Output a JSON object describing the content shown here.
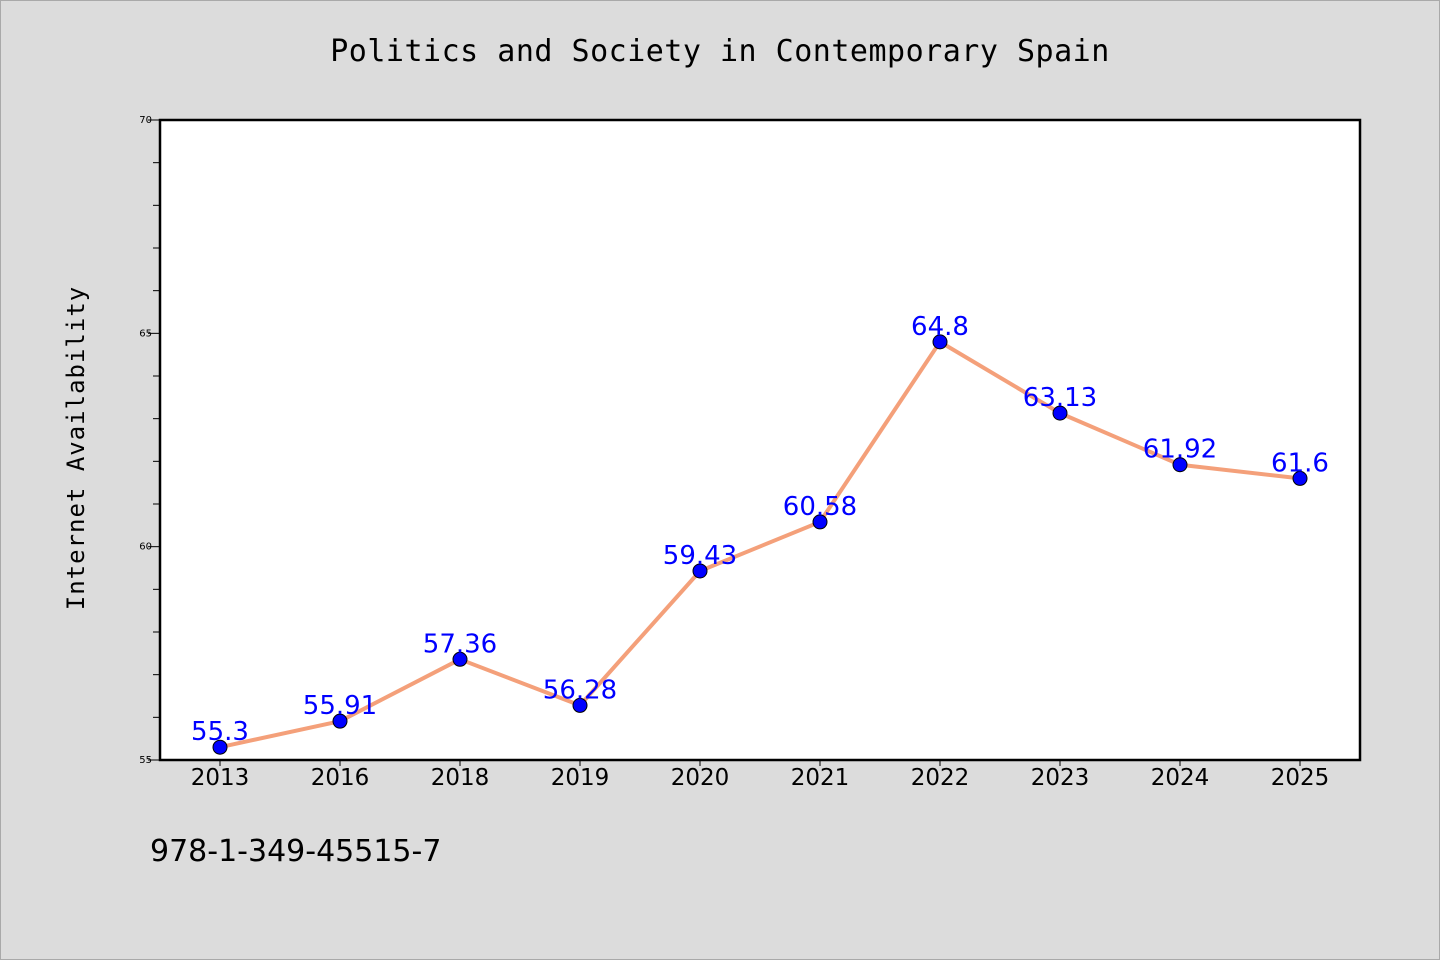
{
  "chart_data": {
    "type": "line",
    "title": "Politics and Society in Contemporary Spain",
    "xlabel": "",
    "ylabel": "Internet Availability",
    "categories": [
      "2013",
      "2016",
      "2018",
      "2019",
      "2020",
      "2021",
      "2022",
      "2023",
      "2024",
      "2025"
    ],
    "series": [
      {
        "values": [
          55.3,
          55.91,
          57.36,
          56.28,
          59.43,
          60.58,
          64.8,
          63.13,
          61.92,
          61.6
        ],
        "labels": [
          "55.3",
          "55.91",
          "57.36",
          "56.28",
          "59.43",
          "60.58",
          "64.8",
          "63.13",
          "61.92",
          "61.6"
        ],
        "line_color": "#f4a07a",
        "marker_color": "#0000ff",
        "label_color": "#0000ff"
      }
    ],
    "ylim": [
      55,
      70
    ],
    "yticks": [
      55,
      60,
      65,
      70
    ],
    "grid": false,
    "legend": "none",
    "background_color": "#dcdcdc",
    "plot_background_color": "#ffffff"
  },
  "footer": {
    "isbn": "978-1-349-45515-7"
  }
}
